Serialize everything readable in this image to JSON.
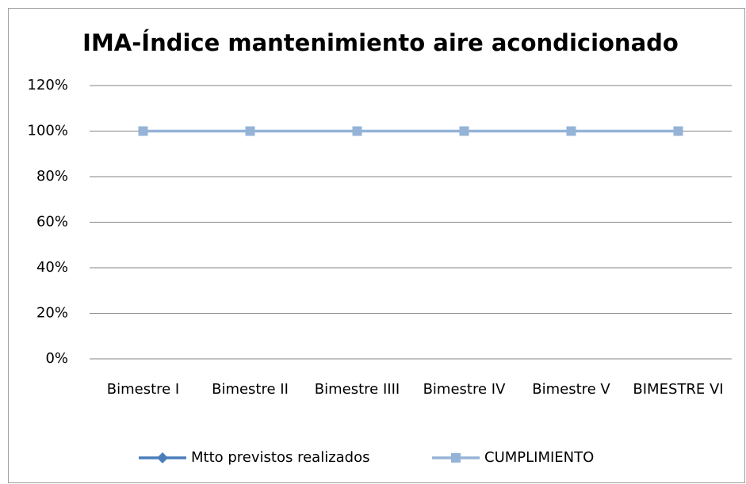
{
  "chart_data": {
    "type": "line",
    "title": "IMA-Índice mantenimiento aire acondicionado",
    "categories": [
      "Bimestre I",
      "Bimestre II",
      "Bimestre IIII",
      "Bimestre IV",
      "Bimestre V",
      "BIMESTRE VI"
    ],
    "series": [
      {
        "name": "Mtto previstos realizados",
        "color": "#4a7ebb",
        "marker": "diamond",
        "values": [
          null,
          null,
          null,
          null,
          null,
          null
        ]
      },
      {
        "name": "CUMPLIMIENTO",
        "color": "#95b3d7",
        "marker": "square",
        "values": [
          100,
          100,
          100,
          100,
          100,
          100
        ]
      }
    ],
    "ylim": [
      0,
      120
    ],
    "yticks": [
      {
        "value": 0,
        "label": "0%"
      },
      {
        "value": 20,
        "label": "20%"
      },
      {
        "value": 40,
        "label": "40%"
      },
      {
        "value": 60,
        "label": "60%"
      },
      {
        "value": 80,
        "label": "80%"
      },
      {
        "value": 100,
        "label": "100%"
      },
      {
        "value": 120,
        "label": "120%"
      }
    ],
    "grid": true,
    "legend": "bottom"
  }
}
